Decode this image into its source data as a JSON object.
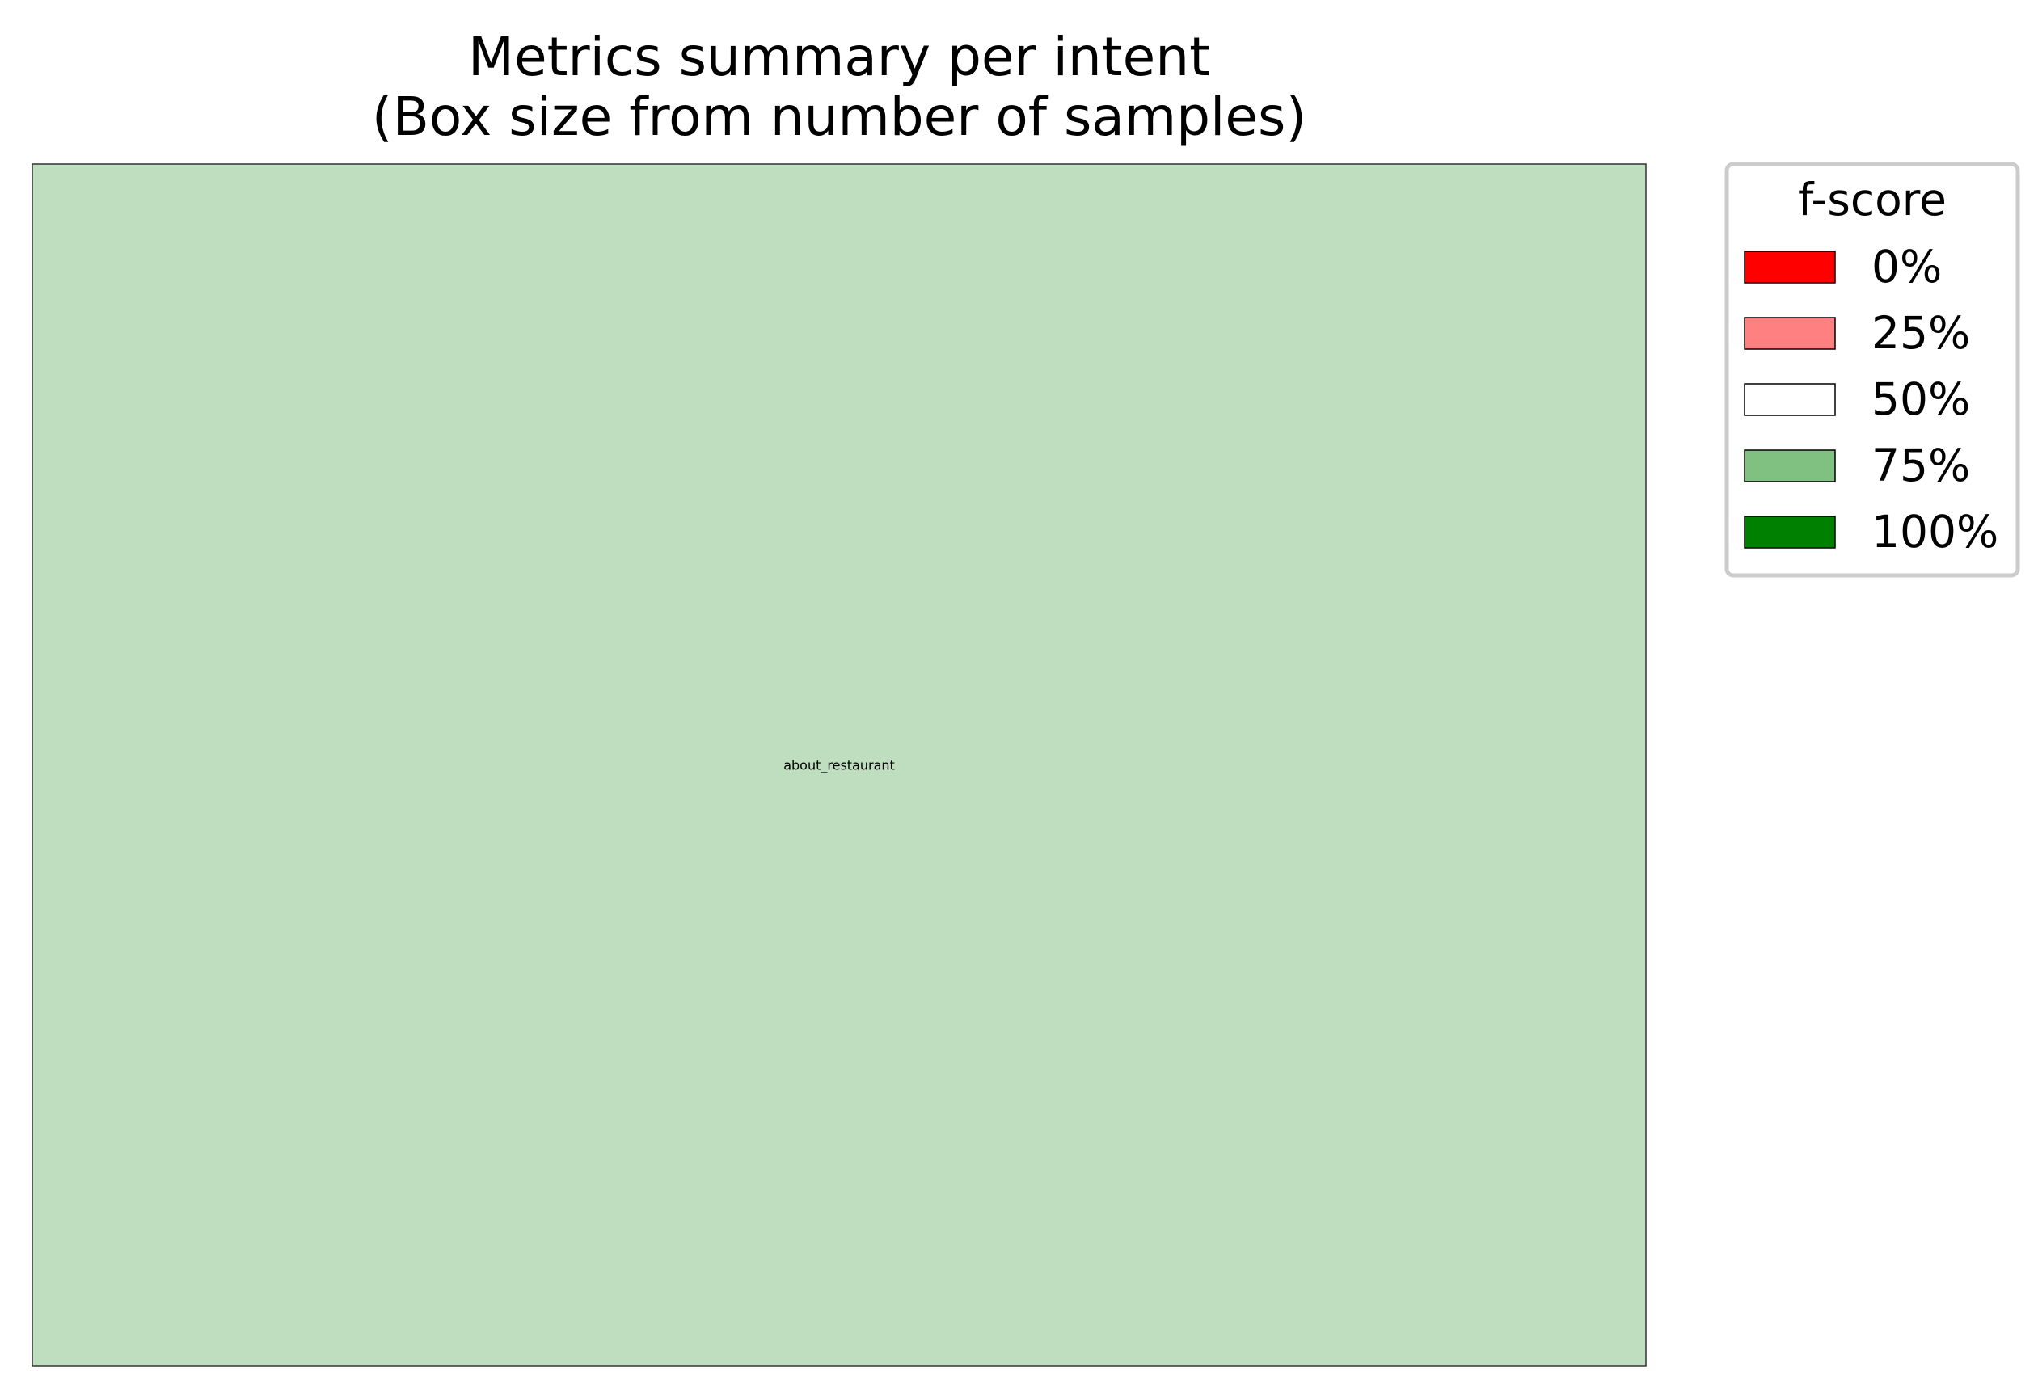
{
  "chart_data": {
    "type": "treemap",
    "title": "Metrics summary per intent",
    "subtitle": "(Box size from number of samples)",
    "legend": {
      "title": "f-score",
      "placement": "right",
      "entries": [
        {
          "label": "0%",
          "color": "#ff0000"
        },
        {
          "label": "25%",
          "color": "#ff8080"
        },
        {
          "label": "50%",
          "color": "#ffffff"
        },
        {
          "label": "75%",
          "color": "#80c080"
        },
        {
          "label": "100%",
          "color": "#008000"
        }
      ]
    },
    "boxes": [
      {
        "label": "about_restaurant",
        "share": 1.0,
        "color": "#bfddbf"
      }
    ]
  }
}
